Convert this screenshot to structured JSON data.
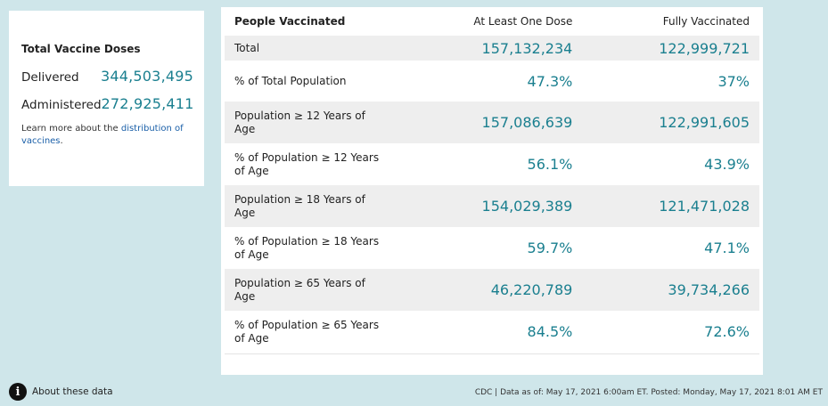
{
  "doses": {
    "title": "Total Vaccine Doses",
    "delivered_label": "Delivered",
    "delivered_value": "344,503,495",
    "administered_label": "Administered",
    "administered_value": "272,925,411",
    "learn_more_prefix": "Learn more about the ",
    "learn_more_link": "distribution of vaccines",
    "learn_more_suffix": "."
  },
  "table": {
    "headers": [
      "People Vaccinated",
      "At Least One Dose",
      "Fully Vaccinated"
    ],
    "rows": [
      {
        "label": "Total",
        "one_dose": "157,132,234",
        "fully": "122,999,721"
      },
      {
        "label": "% of Total Population",
        "one_dose": "47.3%",
        "fully": "37%"
      },
      {
        "label": "Population ≥ 12 Years of Age",
        "one_dose": "157,086,639",
        "fully": "122,991,605"
      },
      {
        "label": "% of Population ≥ 12 Years of Age",
        "one_dose": "56.1%",
        "fully": "43.9%"
      },
      {
        "label": "Population ≥ 18 Years of Age",
        "one_dose": "154,029,389",
        "fully": "121,471,028"
      },
      {
        "label": "% of Population ≥ 18 Years of Age",
        "one_dose": "59.7%",
        "fully": "47.1%"
      },
      {
        "label": "Population ≥ 65 Years of Age",
        "one_dose": "46,220,789",
        "fully": "39,734,266"
      },
      {
        "label": "% of Population ≥ 65 Years of Age",
        "one_dose": "84.5%",
        "fully": "72.6%"
      }
    ]
  },
  "footer": {
    "info_icon": "info-circle-icon",
    "about_label": "About these data",
    "note": "CDC | Data as of: May 17, 2021 6:00am ET. Posted: Monday, May 17, 2021 8:01 AM ET"
  },
  "colors": {
    "background": "#cfe6ea",
    "accent_value": "#1a7f8f",
    "link": "#1a5fa8",
    "row_shade": "#eeeeee"
  }
}
